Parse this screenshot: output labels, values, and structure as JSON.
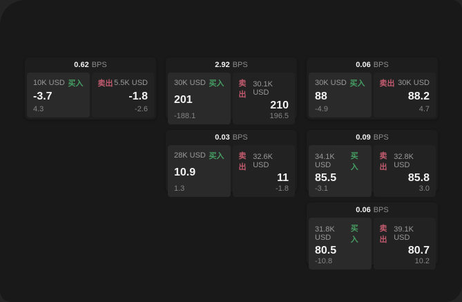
{
  "window": {
    "outer_bg": "#242424",
    "panel_bg": "#191919"
  },
  "labels": {
    "buy": "买入",
    "sell": "卖出",
    "bps_unit": "BPS"
  },
  "colors": {
    "buy-green": "#469d62",
    "sell-red": "#c05b6e",
    "value-white": "#f2f2f2",
    "muted-gray": "#9a9a9a"
  },
  "cards": [
    {
      "bps": "0.62",
      "buy": {
        "size": "10K USD",
        "price": "-3.7",
        "change": "4.3"
      },
      "sell": {
        "size": "5.5K USD",
        "price": "-1.8",
        "change": "-2.6"
      }
    },
    {
      "bps": "2.92",
      "buy": {
        "size": "30K USD",
        "price": "201",
        "change": "-188.1"
      },
      "sell": {
        "size": "30.1K USD",
        "price": "210",
        "change": "196.5"
      }
    },
    {
      "bps": "0.03",
      "buy": {
        "size": "28K USD",
        "price": "10.9",
        "change": "1.3"
      },
      "sell": {
        "size": "32.6K USD",
        "price": "11",
        "change": "-1.8"
      }
    },
    {
      "bps": "0.06",
      "buy": {
        "size": "30K USD",
        "price": "88",
        "change": "-4.9"
      },
      "sell": {
        "size": "30K USD",
        "price": "88.2",
        "change": "4.7"
      }
    },
    {
      "bps": "0.09",
      "buy": {
        "size": "34.1K USD",
        "price": "85.5",
        "change": "-3.1"
      },
      "sell": {
        "size": "32.8K USD",
        "price": "85.8",
        "change": "3.0"
      }
    },
    {
      "bps": "0.06",
      "buy": {
        "size": "31.8K USD",
        "price": "80.5",
        "change": "-10.8"
      },
      "sell": {
        "size": "39.1K USD",
        "price": "80.7",
        "change": "10.2"
      }
    }
  ]
}
